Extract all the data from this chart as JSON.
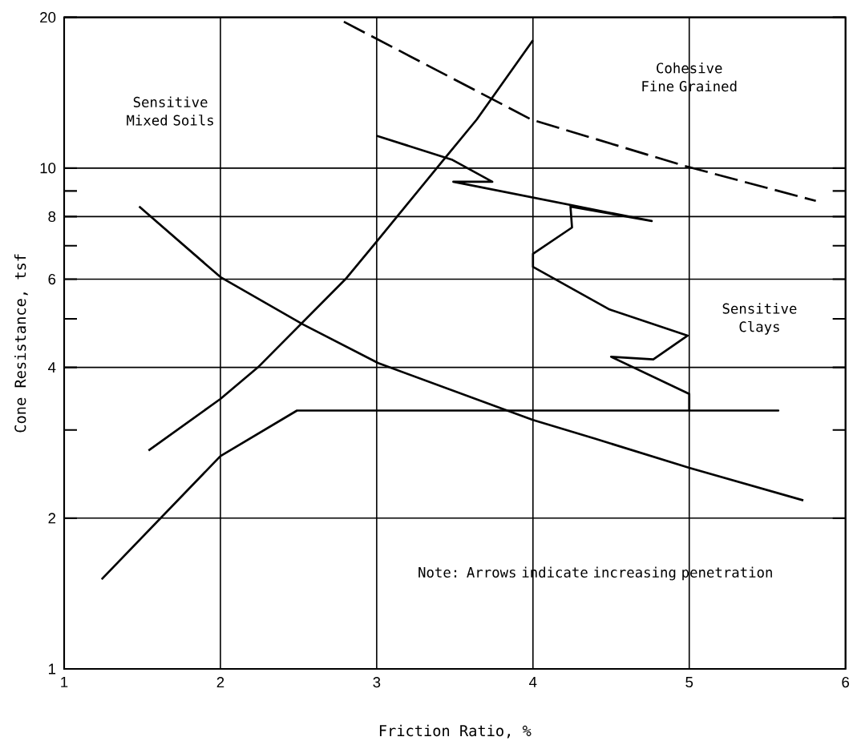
{
  "chart_data": {
    "type": "line",
    "xlabel": "Friction Ratio, %",
    "ylabel": "Cone Resistance, tsf",
    "xlim": [
      1,
      6
    ],
    "xticks": [
      1,
      2,
      3,
      4,
      5,
      6
    ],
    "ylim": [
      1,
      20
    ],
    "log": "y",
    "yticks": [
      1,
      2,
      {
        "value": 3,
        "label": null
      },
      4,
      {
        "value": 5,
        "label": null
      },
      6,
      {
        "value": 7,
        "label": null
      },
      8,
      {
        "value": 9,
        "label": null
      },
      10,
      20
    ],
    "grid": true,
    "marker": "none",
    "series": [
      {
        "color": "#000000",
        "line_style": "solid",
        "x": [
          1.48,
          2.0,
          2.53,
          3.01,
          4.0,
          4.4,
          5.0,
          5.73
        ],
        "values": [
          8.38,
          6.06,
          4.87,
          4.08,
          3.14,
          2.88,
          2.52,
          2.17
        ]
      },
      {
        "color": "#000000",
        "line_style": "solid",
        "x": [
          1.54,
          2.0,
          2.24,
          2.8,
          3.01,
          3.44,
          3.64,
          4.0
        ],
        "values": [
          2.73,
          3.46,
          4.0,
          6.0,
          7.2,
          10.5,
          12.5,
          18.0
        ]
      },
      {
        "color": "#000000",
        "line_style": "dashed",
        "x": [
          2.79,
          3.99,
          4.97,
          5.81
        ],
        "values": [
          19.6,
          12.5,
          10.1,
          8.6
        ]
      },
      {
        "color": "#000000",
        "line_style": "solid",
        "x": [
          1.24,
          2.0,
          2.49,
          5.57,
          5.0,
          5.0,
          4.5,
          4.77,
          4.99,
          4.49,
          4.0,
          4.0,
          4.25,
          4.24,
          4.76,
          3.49,
          3.74,
          3.48,
          3.0
        ],
        "values": [
          1.51,
          2.66,
          3.28,
          3.28,
          3.28,
          3.54,
          4.2,
          4.15,
          4.63,
          5.22,
          6.35,
          6.74,
          7.61,
          8.38,
          7.84,
          9.39,
          9.39,
          10.4,
          11.6
        ]
      }
    ],
    "annotations": [
      "Sensitive Mixed Soils",
      "Cohesive Fine Grained",
      "Sensitive Clays",
      "Note: Arrows indicate increasing penetration"
    ]
  }
}
